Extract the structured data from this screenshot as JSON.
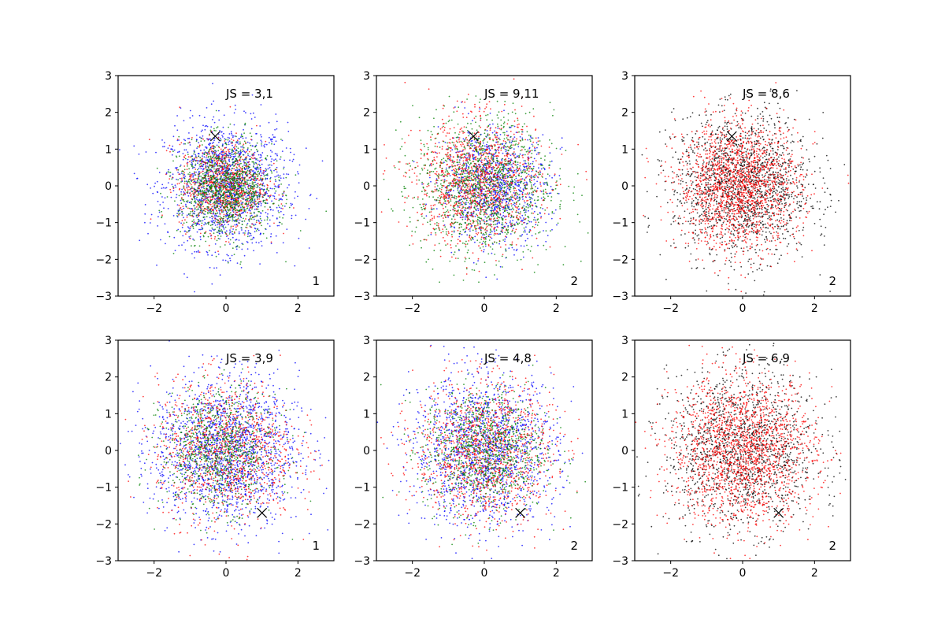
{
  "chart_data": [
    {
      "type": "scatter",
      "annotation": "JS = 3,1",
      "corner_label": "1",
      "xlim": [
        -3,
        3
      ],
      "ylim": [
        -3,
        3
      ],
      "xticks": [
        -2,
        0,
        2
      ],
      "yticks": [
        -3,
        -2,
        -1,
        0,
        1,
        2,
        3
      ],
      "marker": {
        "x": -0.3,
        "y": 1.35,
        "color": "#000000"
      },
      "series": [
        {
          "color": "#0000ff",
          "n_points": 1500,
          "center": [
            0,
            0
          ],
          "spread": 0.85
        },
        {
          "color": "#ff0000",
          "n_points": 900,
          "center": [
            -0.1,
            0
          ],
          "spread": 0.6
        },
        {
          "color": "#008000",
          "n_points": 1200,
          "center": [
            0,
            -0.1
          ],
          "spread": 0.65
        }
      ]
    },
    {
      "type": "scatter",
      "annotation": "JS = 9,11",
      "corner_label": "2",
      "xlim": [
        -3,
        3
      ],
      "ylim": [
        -3,
        3
      ],
      "xticks": [
        -2,
        0,
        2
      ],
      "yticks": [
        -3,
        -2,
        -1,
        0,
        1,
        2,
        3
      ],
      "marker": {
        "x": -0.3,
        "y": 1.35,
        "color": "#000000"
      },
      "series": [
        {
          "color": "#0000ff",
          "n_points": 1000,
          "center": [
            0.3,
            0
          ],
          "spread": 0.75
        },
        {
          "color": "#ff0000",
          "n_points": 1300,
          "center": [
            -0.2,
            0.1
          ],
          "spread": 0.85
        },
        {
          "color": "#008000",
          "n_points": 1300,
          "center": [
            0,
            0
          ],
          "spread": 0.95
        }
      ]
    },
    {
      "type": "scatter",
      "annotation": "JS = 8,6",
      "corner_label": "2",
      "xlim": [
        -3,
        3
      ],
      "ylim": [
        -3,
        3
      ],
      "xticks": [
        -2,
        0,
        2
      ],
      "yticks": [
        -3,
        -2,
        -1,
        0,
        1,
        2,
        3
      ],
      "marker": {
        "x": -0.3,
        "y": 1.35,
        "color": "#000000"
      },
      "series": [
        {
          "color": "#000000",
          "n_points": 1700,
          "center": [
            0,
            0
          ],
          "spread": 0.95
        },
        {
          "color": "#ff0000",
          "n_points": 1700,
          "center": [
            -0.1,
            0
          ],
          "spread": 0.85
        }
      ]
    },
    {
      "type": "scatter",
      "annotation": "JS = 3,9",
      "corner_label": "1",
      "xlim": [
        -3,
        3
      ],
      "ylim": [
        -3,
        3
      ],
      "xticks": [
        -2,
        0,
        2
      ],
      "yticks": [
        -3,
        -2,
        -1,
        0,
        1,
        2,
        3
      ],
      "marker": {
        "x": 1.0,
        "y": -1.7,
        "color": "#000000"
      },
      "series": [
        {
          "color": "#0000ff",
          "n_points": 1700,
          "center": [
            0,
            0
          ],
          "spread": 1.0
        },
        {
          "color": "#ff0000",
          "n_points": 1100,
          "center": [
            0,
            0
          ],
          "spread": 0.95
        },
        {
          "color": "#008000",
          "n_points": 900,
          "center": [
            -0.2,
            0
          ],
          "spread": 0.8
        }
      ]
    },
    {
      "type": "scatter",
      "annotation": "JS = 4,8",
      "corner_label": "2",
      "xlim": [
        -3,
        3
      ],
      "ylim": [
        -3,
        3
      ],
      "xticks": [
        -2,
        0,
        2
      ],
      "yticks": [
        -3,
        -2,
        -1,
        0,
        1,
        2,
        3
      ],
      "marker": {
        "x": 1.0,
        "y": -1.7,
        "color": "#000000"
      },
      "series": [
        {
          "color": "#0000ff",
          "n_points": 1500,
          "center": [
            0,
            0
          ],
          "spread": 1.0
        },
        {
          "color": "#ff0000",
          "n_points": 1200,
          "center": [
            0,
            0
          ],
          "spread": 0.95
        },
        {
          "color": "#008000",
          "n_points": 1000,
          "center": [
            0,
            0
          ],
          "spread": 0.85
        }
      ]
    },
    {
      "type": "scatter",
      "annotation": "JS = 6,9",
      "corner_label": "2",
      "xlim": [
        -3,
        3
      ],
      "ylim": [
        -3,
        3
      ],
      "xticks": [
        -2,
        0,
        2
      ],
      "yticks": [
        -3,
        -2,
        -1,
        0,
        1,
        2,
        3
      ],
      "marker": {
        "x": 1.0,
        "y": -1.7,
        "color": "#000000"
      },
      "series": [
        {
          "color": "#000000",
          "n_points": 1500,
          "center": [
            0,
            0
          ],
          "spread": 1.05
        },
        {
          "color": "#ff0000",
          "n_points": 1800,
          "center": [
            0,
            0
          ],
          "spread": 1.0
        }
      ]
    }
  ]
}
